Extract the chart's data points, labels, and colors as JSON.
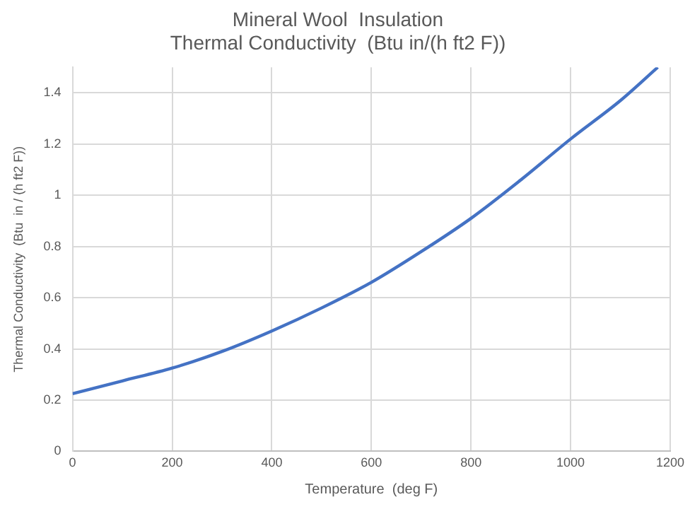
{
  "chart_data": {
    "type": "line",
    "title": [
      "Mineral Wool  Insulation",
      "Thermal Conductivity  (Btu in/(h ft2 F))"
    ],
    "xlabel": "Temperature  (deg F)",
    "ylabel": "Thermal Conductivity  (Btu  in / (h ft2 F))",
    "x": [
      0,
      100,
      200,
      300,
      400,
      500,
      600,
      700,
      800,
      900,
      1000,
      1100,
      1175
    ],
    "series": [
      {
        "color": "#4472c4",
        "values": [
          0.225,
          0.275,
          0.325,
          0.39,
          0.47,
          0.56,
          0.66,
          0.78,
          0.91,
          1.06,
          1.22,
          1.37,
          1.5
        ]
      }
    ],
    "xlim": [
      0,
      1200
    ],
    "xticks": [
      0,
      200,
      400,
      600,
      800,
      1000,
      1200
    ],
    "ylim": [
      0,
      1.5
    ],
    "yticks": [
      0,
      0.2,
      0.4,
      0.6,
      0.8,
      1,
      1.2,
      1.4
    ],
    "grid": true,
    "legend": false,
    "marker": "none",
    "line_style": "solid"
  }
}
